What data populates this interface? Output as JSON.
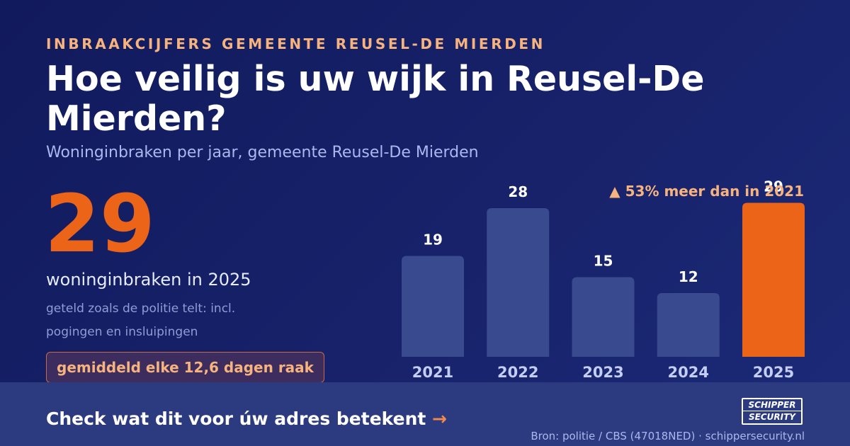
{
  "header": {
    "kicker": "INBRAAKCIJFERS GEMEENTE REUSEL-DE MIERDEN",
    "title": "Hoe veilig is uw wijk in Reusel-De Mierden?",
    "subtitle": "Woninginbraken per jaar, gemeente Reusel-De Mierden"
  },
  "highlight": {
    "number": "29",
    "caption": "woninginbraken in 2025",
    "note": "geteld zoals de politie telt: incl. pogingen en insluipingen",
    "pill": "gemiddeld elke 12,6 dagen raak"
  },
  "chart_data": {
    "type": "bar",
    "categories": [
      "2021",
      "2022",
      "2023",
      "2024",
      "2025"
    ],
    "values": [
      19,
      28,
      15,
      12,
      29
    ],
    "annotation": "▲ 53% meer dan in 2021",
    "highlight_category": "2025",
    "colors": {
      "bar": "#3a4a8f",
      "highlight": "#ec6418",
      "annotation": "#f7b37e",
      "value_label": "#ffffff",
      "tick_label": "#c4cdf3"
    }
  },
  "footer": {
    "cta": "Check wat dit voor úw adres betekent",
    "cta_arrow": "→",
    "source": "Bron: politie / CBS (47018NED) · schippersecurity.nl",
    "logo_line1": "SCHIPPER",
    "logo_line2": "SECURITY"
  }
}
